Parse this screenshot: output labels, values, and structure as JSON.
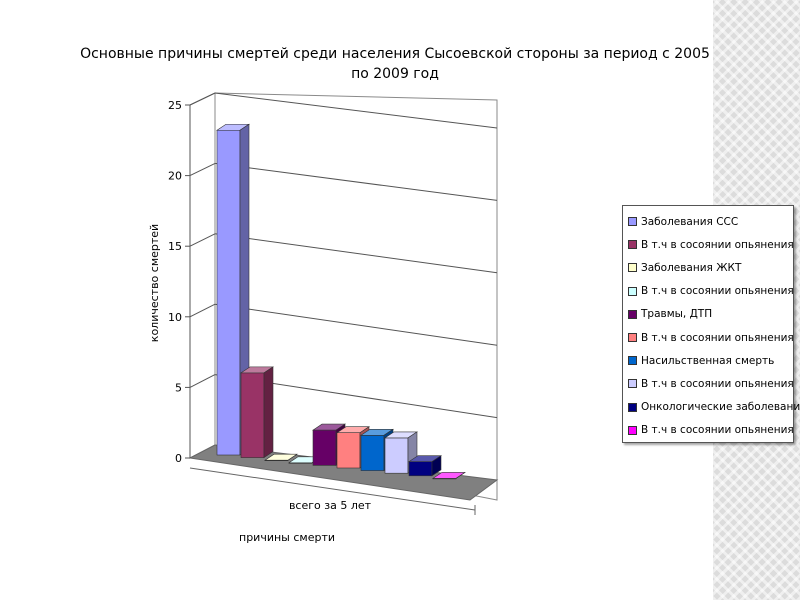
{
  "chart_data": {
    "type": "bar",
    "title": "Основные причины смертей среди населения Сысоевской стороны за период с 2005 по 2009 год",
    "xlabel": "причины смерти",
    "ylabel": "количество смертей",
    "categories": [
      "всего за 5 лет"
    ],
    "ylim": [
      0,
      25
    ],
    "yticks": [
      "0",
      "5",
      "10",
      "15",
      "20",
      "25"
    ],
    "grid": true,
    "legend_position": "right",
    "series": [
      {
        "name": "Заболевания ССС",
        "values": [
          23
        ],
        "color": "#9999ff"
      },
      {
        "name": "В т.ч в сосоянии опьянения",
        "values": [
          6
        ],
        "color": "#993366"
      },
      {
        "name": "Заболевания ЖКТ",
        "values": [
          0
        ],
        "color": "#ffffcc"
      },
      {
        "name": "В т.ч в сосоянии опьянения",
        "values": [
          0
        ],
        "color": "#ccffff"
      },
      {
        "name": "Травмы, ДТП",
        "values": [
          2.5
        ],
        "color": "#660066"
      },
      {
        "name": "В т.ч в сосоянии опьянения",
        "values": [
          2.5
        ],
        "color": "#ff8080"
      },
      {
        "name": "Насильственная смерть",
        "values": [
          2.5
        ],
        "color": "#0066cc"
      },
      {
        "name": "В т.ч в сосоянии опьянения",
        "values": [
          2.5
        ],
        "color": "#ccccff"
      },
      {
        "name": "Онкологические заболевания",
        "values": [
          1
        ],
        "color": "#000080"
      },
      {
        "name": "В т.ч в сосоянии опьянения",
        "values": [
          0
        ],
        "color": "#ff00ff"
      }
    ]
  }
}
